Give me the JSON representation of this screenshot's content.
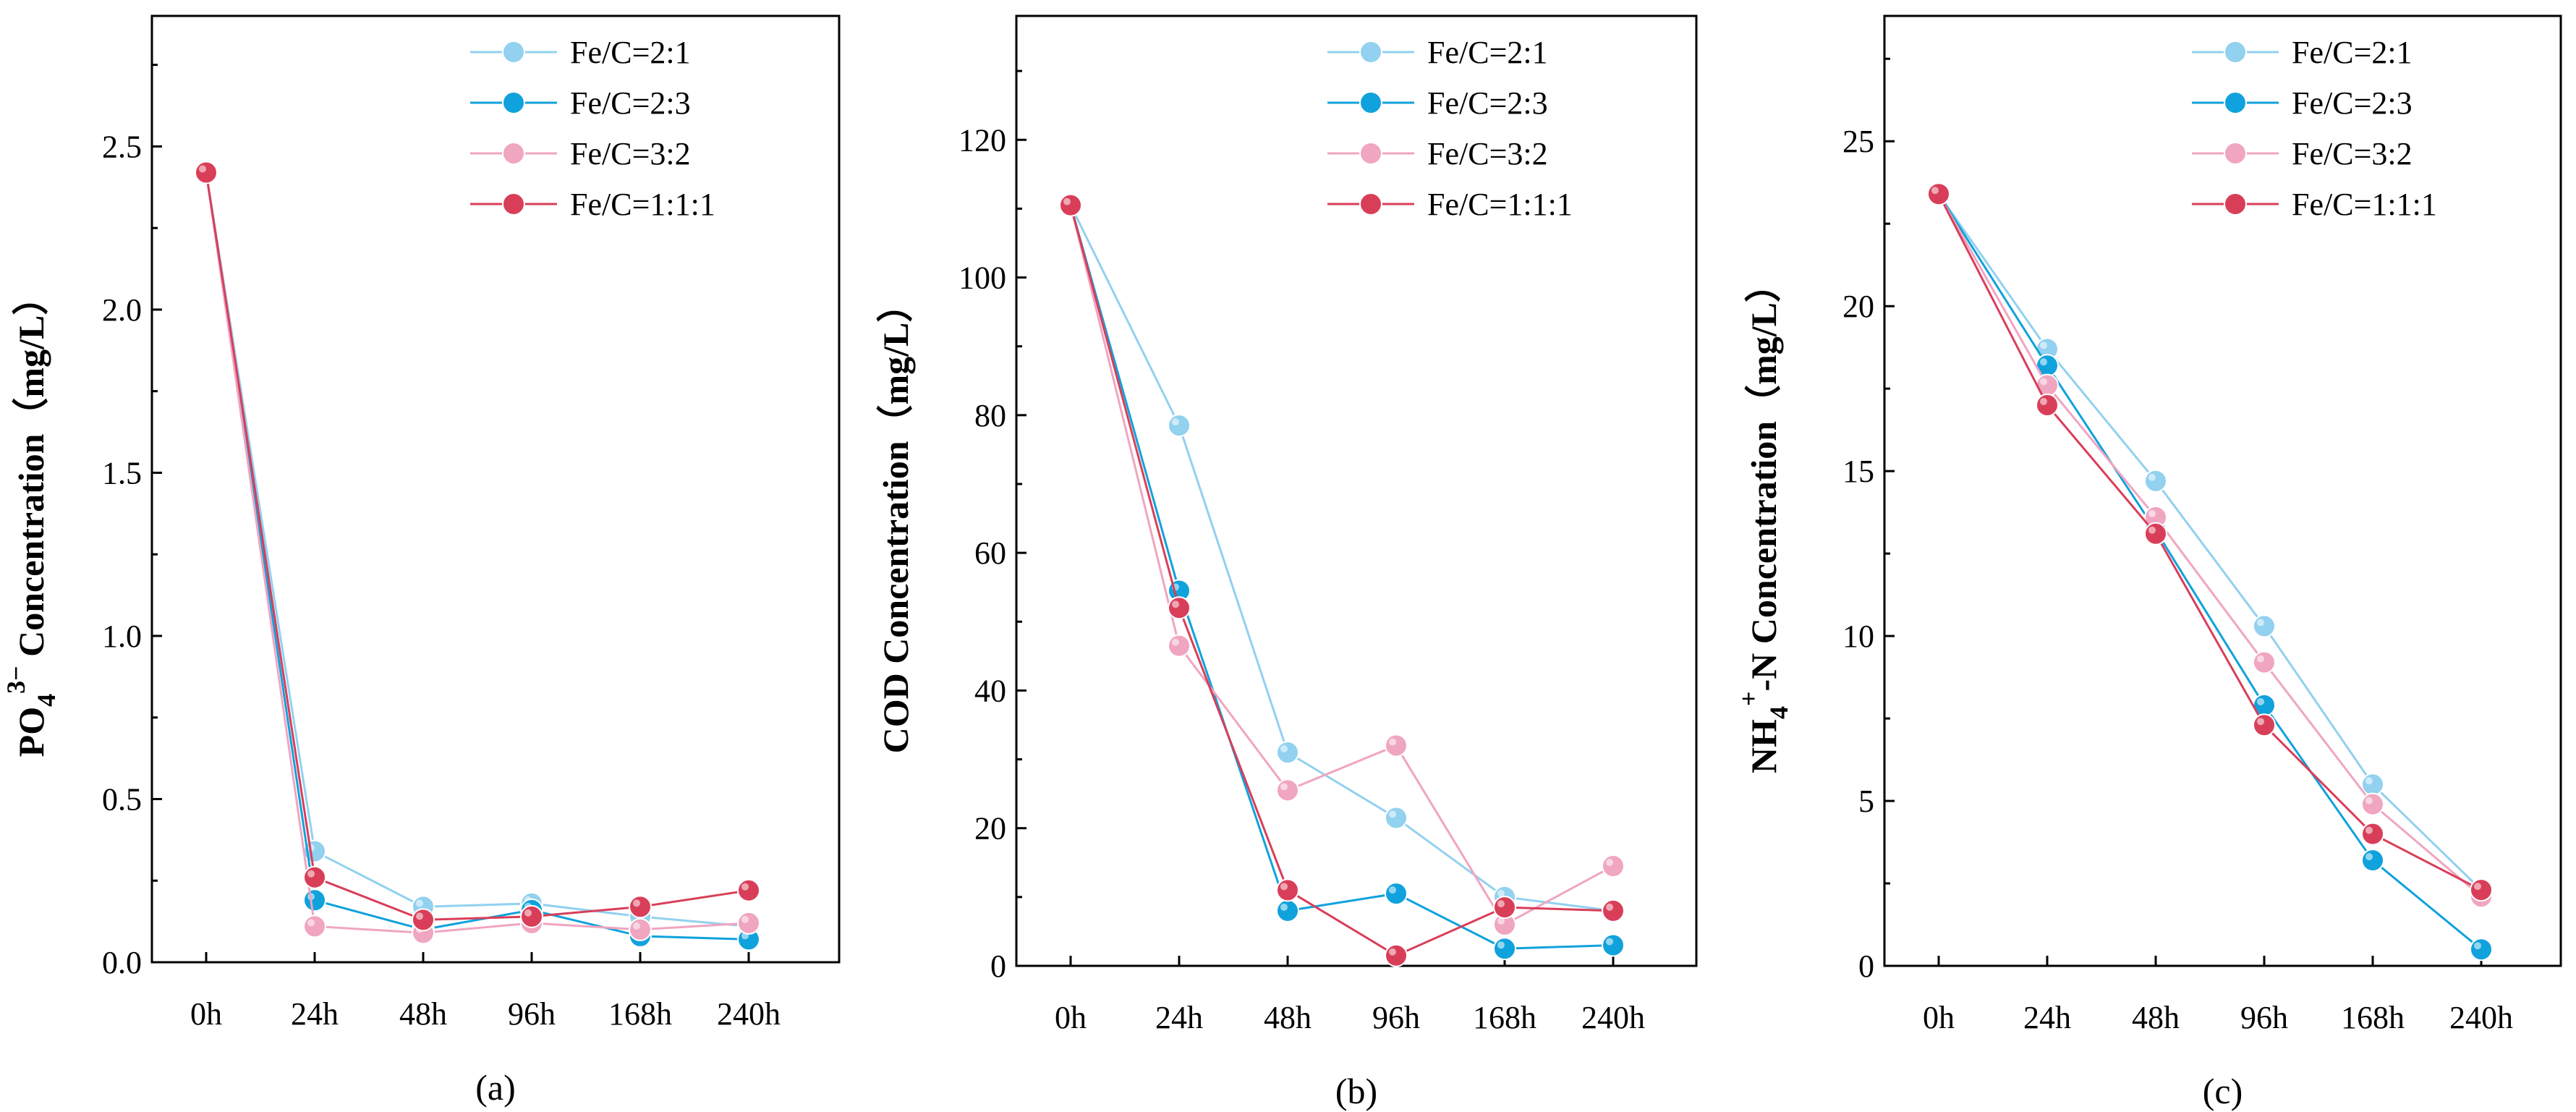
{
  "figure": {
    "colors": {
      "Fe/C=2:1": "#92d1ef",
      "Fe/C=2:3": "#10a2dc",
      "Fe/C=3:2": "#f0a5c1",
      "Fe/C=1:1:1": "#d93e59"
    }
  },
  "chart_data": [
    {
      "type": "line",
      "panel_label": "(a)",
      "ylabel_parts": [
        "PO",
        "4",
        "3−",
        " Concentration（mg/L）"
      ],
      "categories": [
        "0h",
        "24h",
        "48h",
        "96h",
        "168h",
        "240h"
      ],
      "ylim": [
        0,
        2.9
      ],
      "yticks": [
        0.0,
        0.5,
        1.0,
        1.5,
        2.0,
        2.5
      ],
      "ytick_labels": [
        "0.0",
        "0.5",
        "1.0",
        "1.5",
        "2.0",
        "2.5"
      ],
      "legend_position": "top-right",
      "series": [
        {
          "name": "Fe/C=2:1",
          "values": [
            2.42,
            0.34,
            0.17,
            0.18,
            0.14,
            0.11
          ]
        },
        {
          "name": "Fe/C=2:3",
          "values": [
            2.42,
            0.19,
            0.1,
            0.16,
            0.08,
            0.07
          ]
        },
        {
          "name": "Fe/C=3:2",
          "values": [
            2.42,
            0.11,
            0.09,
            0.12,
            0.1,
            0.12
          ]
        },
        {
          "name": "Fe/C=1:1:1",
          "values": [
            2.42,
            0.26,
            0.13,
            0.14,
            0.17,
            0.22
          ]
        }
      ]
    },
    {
      "type": "line",
      "panel_label": "(b)",
      "ylabel_parts": [
        "COD Concentration（mg/L）"
      ],
      "categories": [
        "0h",
        "24h",
        "48h",
        "96h",
        "168h",
        "240h"
      ],
      "ylim": [
        0,
        138
      ],
      "yticks": [
        0,
        20,
        40,
        60,
        80,
        100,
        120
      ],
      "ytick_labels": [
        "0",
        "20",
        "40",
        "60",
        "80",
        "100",
        "120"
      ],
      "legend_position": "top-right",
      "series": [
        {
          "name": "Fe/C=2:1",
          "values": [
            110.5,
            78.5,
            31.0,
            21.5,
            10.0,
            8.0
          ]
        },
        {
          "name": "Fe/C=2:3",
          "values": [
            110.5,
            54.5,
            8.0,
            10.5,
            2.5,
            3.0
          ]
        },
        {
          "name": "Fe/C=3:2",
          "values": [
            110.5,
            46.5,
            25.5,
            32.0,
            6.0,
            14.5
          ]
        },
        {
          "name": "Fe/C=1:1:1",
          "values": [
            110.5,
            52.0,
            11.0,
            1.5,
            8.5,
            8.0
          ]
        }
      ]
    },
    {
      "type": "line",
      "panel_label": "(c)",
      "ylabel_parts": [
        "NH",
        "4",
        "+",
        "-N Concentration（mg/L）"
      ],
      "categories": [
        "0h",
        "24h",
        "48h",
        "96h",
        "168h",
        "240h"
      ],
      "ylim": [
        0,
        28.8
      ],
      "yticks": [
        0,
        5,
        10,
        15,
        20,
        25
      ],
      "ytick_labels": [
        "0",
        "5",
        "10",
        "15",
        "20",
        "25"
      ],
      "legend_position": "top-right",
      "series": [
        {
          "name": "Fe/C=2:1",
          "values": [
            23.4,
            18.7,
            14.7,
            10.3,
            5.5,
            2.3
          ]
        },
        {
          "name": "Fe/C=2:3",
          "values": [
            23.4,
            18.2,
            13.2,
            7.9,
            3.2,
            0.5
          ]
        },
        {
          "name": "Fe/C=3:2",
          "values": [
            23.4,
            17.6,
            13.6,
            9.2,
            4.9,
            2.1
          ]
        },
        {
          "name": "Fe/C=1:1:1",
          "values": [
            23.4,
            17.0,
            13.1,
            7.3,
            4.0,
            2.3
          ]
        }
      ]
    }
  ]
}
